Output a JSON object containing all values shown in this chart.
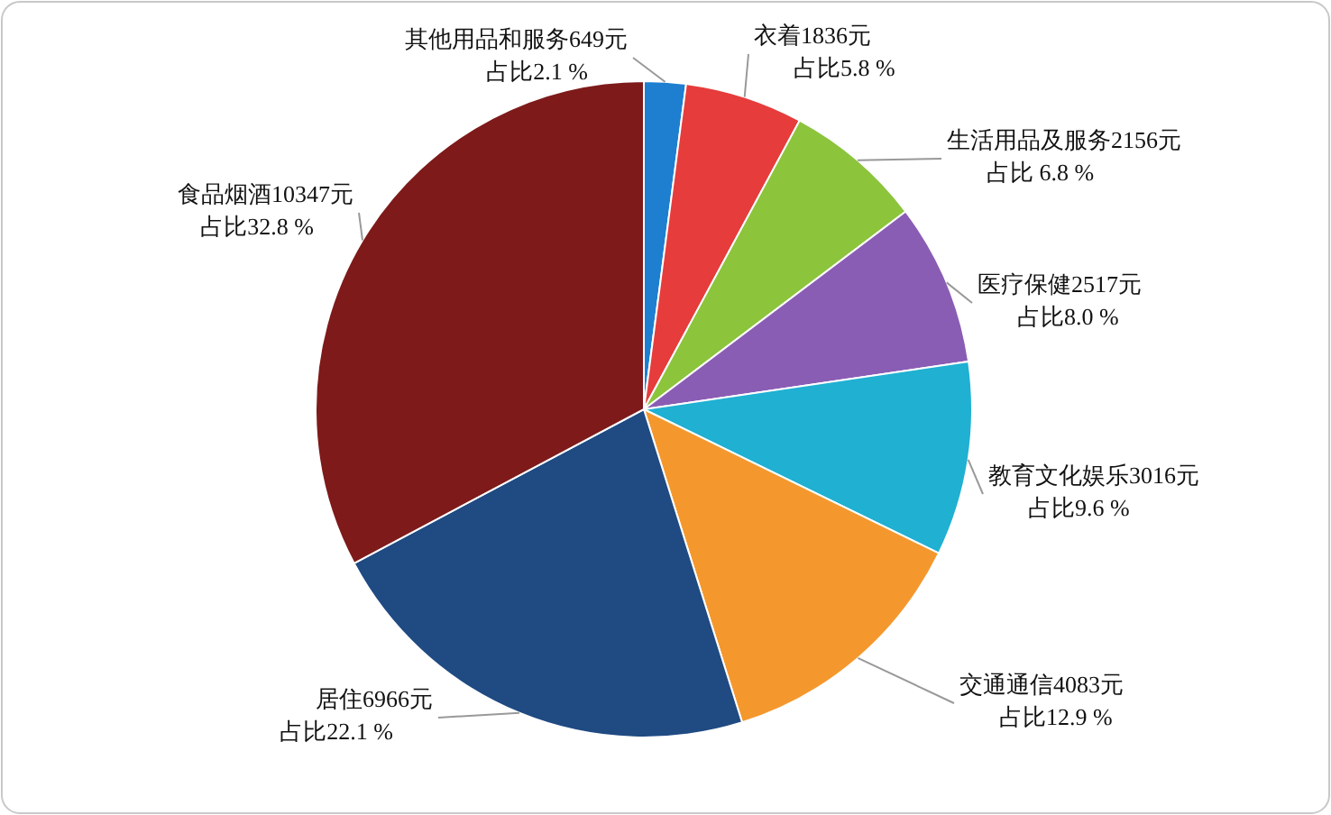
{
  "chart_data": {
    "type": "pie",
    "categories": [
      "其他用品和服务",
      "衣着",
      "生活用品及服务",
      "医疗保健",
      "教育文化娱乐",
      "交通通信",
      "居住",
      "食品烟酒"
    ],
    "values": [
      649,
      1836,
      2156,
      2517,
      3016,
      4083,
      6966,
      10347
    ],
    "value_labels": [
      "649元",
      "1836元",
      "2156元",
      "2517元",
      "3016元",
      "4083元",
      "6966元",
      "10347元"
    ],
    "annotations": [
      "占比2.1 %",
      "占比5.8 %",
      "占比 6.8 %",
      "占比8.0 %",
      "占比9.6 %",
      "占比12.9 %",
      "占比22.1 %",
      "占比32.8 %"
    ],
    "colors": [
      "#1e7fd0",
      "#e63c3c",
      "#8cc43c",
      "#8a5db4",
      "#1fb0d2",
      "#f4982e",
      "#1f4a82",
      "#7e1a1a"
    ]
  }
}
